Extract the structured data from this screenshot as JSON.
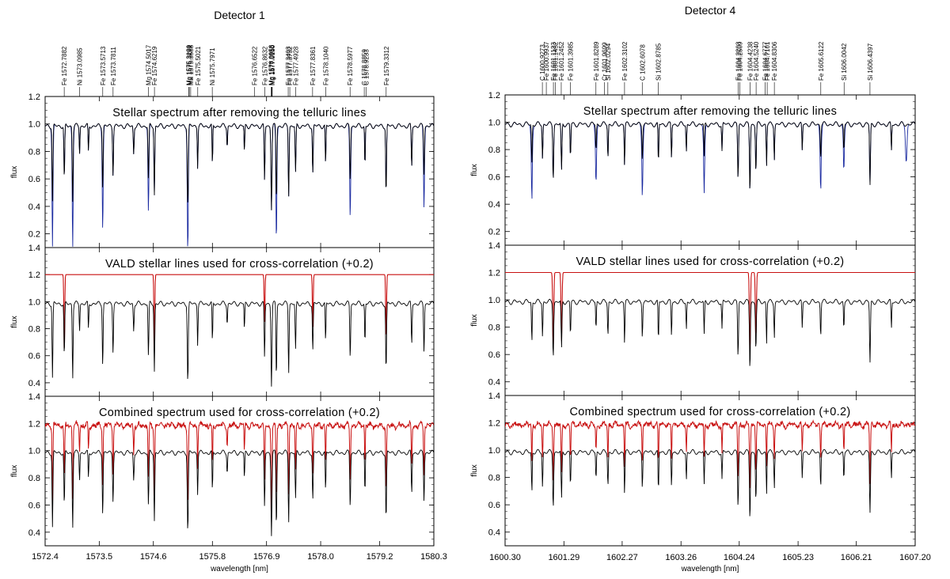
{
  "chart_data": [
    {
      "type": "line",
      "title": "Detector 1",
      "xlabel": "wavelength [nm]",
      "xlim": [
        1572.4,
        1580.3
      ],
      "x_ticks": [
        "1572.4",
        "1573.5",
        "1574.6",
        "1575.8",
        "1576.9",
        "1578.0",
        "1579.2",
        "1580.3"
      ],
      "x_tick_values": [
        1572.4,
        1573.5,
        1574.6,
        1575.8,
        1576.9,
        1578.0,
        1579.2,
        1580.3
      ],
      "line_labels": [
        {
          "text": "Fe 1572.7882",
          "x": 1572.7882
        },
        {
          "text": "Ni 1573.0985",
          "x": 1573.0985
        },
        {
          "text": "Fe 1573.5713",
          "x": 1573.5713
        },
        {
          "text": "Fe 1573.7811",
          "x": 1573.7811
        },
        {
          "text": "Mg 1574.5017",
          "x": 1574.5017
        },
        {
          "text": "Fe 1574.6219",
          "x": 1574.6219
        },
        {
          "text": "Mg 1575.3189",
          "x": 1575.3189
        },
        {
          "text": "Mg 1575.3291",
          "x": 1575.3291
        },
        {
          "text": "Mn 1575.3588",
          "x": 1575.3588
        },
        {
          "text": "Fe 1575.5021",
          "x": 1575.5021
        },
        {
          "text": "Ni 1575.7971",
          "x": 1575.7971
        },
        {
          "text": "Fe 1576.6522",
          "x": 1576.6522
        },
        {
          "text": "Fe 1576.8632",
          "x": 1576.8632
        },
        {
          "text": "Mg 1576.9953",
          "x": 1576.9953
        },
        {
          "text": "Mg 1577.0055",
          "x": 1577.0055
        },
        {
          "text": "Mg 1577.0150",
          "x": 1577.015
        },
        {
          "text": "Fe 1577.3403",
          "x": 1577.3403
        },
        {
          "text": "Fe 1577.3732",
          "x": 1577.3732
        },
        {
          "text": "Fe 1577.4928",
          "x": 1577.4928
        },
        {
          "text": "Fe 1577.8361",
          "x": 1577.8361
        },
        {
          "text": "Fe 1578.1040",
          "x": 1578.104
        },
        {
          "text": "Fe 1578.5977",
          "x": 1578.5977
        },
        {
          "text": "C 1578.8859",
          "x": 1578.8859
        },
        {
          "text": "C 1578.9233",
          "x": 1578.9233
        },
        {
          "text": "Fe 1579.3312",
          "x": 1579.3312
        }
      ],
      "panels": [
        {
          "title": "Stellar spectrum after removing the telluric lines",
          "ylabel": "flux",
          "ylim": [
            0.1,
            1.2
          ],
          "y_ticks": [
            "0.2",
            "0.4",
            "0.6",
            "0.8",
            "1.0",
            "1.2"
          ],
          "mode": "telluric"
        },
        {
          "title": "VALD stellar lines used for cross-correlation (+0.2)",
          "ylabel": "flux",
          "ylim": [
            0.3,
            1.4
          ],
          "y_ticks": [
            "0.4",
            "0.6",
            "0.8",
            "1.0",
            "1.2",
            "1.4"
          ],
          "mode": "vald",
          "vald_lines": [
            {
              "center": 1572.79,
              "depth": 0.6
            },
            {
              "center": 1574.62,
              "depth": 0.55
            },
            {
              "center": 1576.86,
              "depth": 0.35
            },
            {
              "center": 1577.84,
              "depth": 0.4
            },
            {
              "center": 1579.33,
              "depth": 0.5
            }
          ]
        },
        {
          "title": "Combined spectrum used for cross-correlation (+0.2)",
          "ylabel": "flux",
          "ylim": [
            0.3,
            1.4
          ],
          "y_ticks": [
            "0.4",
            "0.6",
            "0.8",
            "1.0",
            "1.2",
            "1.4"
          ],
          "mode": "combined"
        }
      ],
      "stellar_spectrum": {
        "continuum": 1.0,
        "absorption_lines": [
          {
            "center": 1572.55,
            "depth": 0.55,
            "width": 0.012
          },
          {
            "center": 1572.79,
            "depth": 0.4,
            "width": 0.012
          },
          {
            "center": 1572.96,
            "depth": 0.55,
            "width": 0.012
          },
          {
            "center": 1573.1,
            "depth": 0.2,
            "width": 0.01
          },
          {
            "center": 1573.28,
            "depth": 0.2,
            "width": 0.01
          },
          {
            "center": 1573.57,
            "depth": 0.45,
            "width": 0.012
          },
          {
            "center": 1573.78,
            "depth": 0.35,
            "width": 0.012
          },
          {
            "center": 1574.2,
            "depth": 0.2,
            "width": 0.012
          },
          {
            "center": 1574.5,
            "depth": 0.4,
            "width": 0.012
          },
          {
            "center": 1574.62,
            "depth": 0.5,
            "width": 0.012
          },
          {
            "center": 1575.3,
            "depth": 0.58,
            "width": 0.014
          },
          {
            "center": 1575.5,
            "depth": 0.3,
            "width": 0.01
          },
          {
            "center": 1575.8,
            "depth": 0.3,
            "width": 0.01
          },
          {
            "center": 1576.1,
            "depth": 0.15,
            "width": 0.01
          },
          {
            "center": 1576.45,
            "depth": 0.2,
            "width": 0.01
          },
          {
            "center": 1576.86,
            "depth": 0.4,
            "width": 0.012
          },
          {
            "center": 1577.0,
            "depth": 0.6,
            "width": 0.014
          },
          {
            "center": 1577.1,
            "depth": 0.55,
            "width": 0.012
          },
          {
            "center": 1577.35,
            "depth": 0.5,
            "width": 0.012
          },
          {
            "center": 1577.49,
            "depth": 0.35,
            "width": 0.012
          },
          {
            "center": 1577.84,
            "depth": 0.35,
            "width": 0.012
          },
          {
            "center": 1578.1,
            "depth": 0.3,
            "width": 0.01
          },
          {
            "center": 1578.6,
            "depth": 0.4,
            "width": 0.012
          },
          {
            "center": 1578.9,
            "depth": 0.3,
            "width": 0.01
          },
          {
            "center": 1579.33,
            "depth": 0.5,
            "width": 0.012
          },
          {
            "center": 1579.85,
            "depth": 0.3,
            "width": 0.012
          },
          {
            "center": 1580.1,
            "depth": 0.35,
            "width": 0.012
          }
        ]
      },
      "telluric_lines": [
        {
          "center": 1572.55,
          "depth": 0.55
        },
        {
          "center": 1572.96,
          "depth": 0.55
        },
        {
          "center": 1573.57,
          "depth": 0.5
        },
        {
          "center": 1574.5,
          "depth": 0.4
        },
        {
          "center": 1575.3,
          "depth": 0.55
        },
        {
          "center": 1577.1,
          "depth": 0.5
        },
        {
          "center": 1578.6,
          "depth": 0.45
        },
        {
          "center": 1580.1,
          "depth": 0.4
        }
      ]
    },
    {
      "type": "line",
      "title": "Detector 4",
      "xlabel": "wavelength [nm]",
      "xlim": [
        1600.3,
        1607.2
      ],
      "x_ticks": [
        "1600.30",
        "1601.29",
        "1602.27",
        "1603.26",
        "1604.24",
        "1605.23",
        "1606.21",
        "1607.20"
      ],
      "x_tick_values": [
        1600.3,
        1601.29,
        1602.27,
        1603.26,
        1604.24,
        1605.23,
        1606.21,
        1607.2
      ],
      "line_labels": [
        {
          "text": "C 1600.9273",
          "x": 1600.9273
        },
        {
          "text": "Fe 1600.9937",
          "x": 1600.9937
        },
        {
          "text": "Fe 1601.1133",
          "x": 1601.1133
        },
        {
          "text": "Fe 1601.1452",
          "x": 1601.1452
        },
        {
          "text": "Fe 1601.2452",
          "x": 1601.2452
        },
        {
          "text": "Fe 1601.3985",
          "x": 1601.3985
        },
        {
          "text": "Fe 1601.8289",
          "x": 1601.8289
        },
        {
          "text": "Cr 1601.9699",
          "x": 1601.9699
        },
        {
          "text": "Si 1602.0294",
          "x": 1602.0294
        },
        {
          "text": "Fe 1602.3102",
          "x": 1602.3102
        },
        {
          "text": "C 1602.6078",
          "x": 1602.6078
        },
        {
          "text": "Si 1602.8785",
          "x": 1602.8785
        },
        {
          "text": "Fe 1604.2203",
          "x": 1604.2203
        },
        {
          "text": "Fe 1604.2509",
          "x": 1604.2509
        },
        {
          "text": "Fe 1604.4238",
          "x": 1604.4238
        },
        {
          "text": "Fe 1604.5240",
          "x": 1604.524
        },
        {
          "text": "Fe 1604.6777",
          "x": 1604.6777
        },
        {
          "text": "Fe 1604.7101",
          "x": 1604.7101
        },
        {
          "text": "Fe 1604.8306",
          "x": 1604.8306
        },
        {
          "text": "Fe 1605.6122",
          "x": 1605.6122
        },
        {
          "text": "Si 1606.0042",
          "x": 1606.0042
        },
        {
          "text": "Si 1606.4397",
          "x": 1606.4397
        }
      ],
      "panels": [
        {
          "title": "Stellar spectrum after removing the telluric lines",
          "ylabel": "flux",
          "ylim": [
            0.1,
            1.2
          ],
          "y_ticks": [
            "0.2",
            "0.4",
            "0.6",
            "0.8",
            "1.0",
            "1.2"
          ],
          "mode": "telluric"
        },
        {
          "title": "VALD stellar lines used for cross-correlation (+0.2)",
          "ylabel": "flux",
          "ylim": [
            0.3,
            1.4
          ],
          "y_ticks": [
            "0.4",
            "0.6",
            "0.8",
            "1.0",
            "1.2",
            "1.4"
          ],
          "mode": "vald",
          "vald_lines": [
            {
              "center": 1601.11,
              "depth": 0.55
            },
            {
              "center": 1601.25,
              "depth": 0.5
            },
            {
              "center": 1604.42,
              "depth": 0.6
            },
            {
              "center": 1604.52,
              "depth": 0.5
            }
          ]
        },
        {
          "title": "Combined spectrum used for cross-correlation (+0.2)",
          "ylabel": "flux",
          "ylim": [
            0.3,
            1.4
          ],
          "y_ticks": [
            "0.4",
            "0.6",
            "0.8",
            "1.0",
            "1.2",
            "1.4"
          ],
          "mode": "combined"
        }
      ],
      "stellar_spectrum": {
        "continuum": 1.0,
        "absorption_lines": [
          {
            "center": 1600.75,
            "depth": 0.3,
            "width": 0.01
          },
          {
            "center": 1600.93,
            "depth": 0.25,
            "width": 0.01
          },
          {
            "center": 1601.11,
            "depth": 0.4,
            "width": 0.012
          },
          {
            "center": 1601.25,
            "depth": 0.35,
            "width": 0.012
          },
          {
            "center": 1601.4,
            "depth": 0.25,
            "width": 0.01
          },
          {
            "center": 1601.83,
            "depth": 0.2,
            "width": 0.01
          },
          {
            "center": 1602.03,
            "depth": 0.25,
            "width": 0.01
          },
          {
            "center": 1602.31,
            "depth": 0.3,
            "width": 0.01
          },
          {
            "center": 1602.61,
            "depth": 0.25,
            "width": 0.01
          },
          {
            "center": 1602.88,
            "depth": 0.3,
            "width": 0.01
          },
          {
            "center": 1603.1,
            "depth": 0.25,
            "width": 0.01
          },
          {
            "center": 1603.35,
            "depth": 0.2,
            "width": 0.01
          },
          {
            "center": 1603.65,
            "depth": 0.25,
            "width": 0.01
          },
          {
            "center": 1603.95,
            "depth": 0.2,
            "width": 0.01
          },
          {
            "center": 1604.22,
            "depth": 0.4,
            "width": 0.012
          },
          {
            "center": 1604.42,
            "depth": 0.5,
            "width": 0.012
          },
          {
            "center": 1604.52,
            "depth": 0.35,
            "width": 0.012
          },
          {
            "center": 1604.7,
            "depth": 0.3,
            "width": 0.01
          },
          {
            "center": 1604.83,
            "depth": 0.25,
            "width": 0.01
          },
          {
            "center": 1605.3,
            "depth": 0.2,
            "width": 0.01
          },
          {
            "center": 1605.61,
            "depth": 0.25,
            "width": 0.01
          },
          {
            "center": 1606.0,
            "depth": 0.2,
            "width": 0.01
          },
          {
            "center": 1606.44,
            "depth": 0.45,
            "width": 0.012
          },
          {
            "center": 1606.8,
            "depth": 0.2,
            "width": 0.01
          }
        ]
      },
      "telluric_lines": [
        {
          "center": 1600.75,
          "depth": 0.45
        },
        {
          "center": 1601.83,
          "depth": 0.4
        },
        {
          "center": 1602.61,
          "depth": 0.45
        },
        {
          "center": 1603.65,
          "depth": 0.45
        },
        {
          "center": 1605.61,
          "depth": 0.4
        },
        {
          "center": 1606.0,
          "depth": 0.25
        },
        {
          "center": 1607.05,
          "depth": 0.45
        }
      ]
    }
  ],
  "colors": {
    "stellar": "#000000",
    "telluric": "#1a2aa0",
    "vald": "#c81010",
    "combined": "#c81010",
    "axes": "#000000"
  }
}
